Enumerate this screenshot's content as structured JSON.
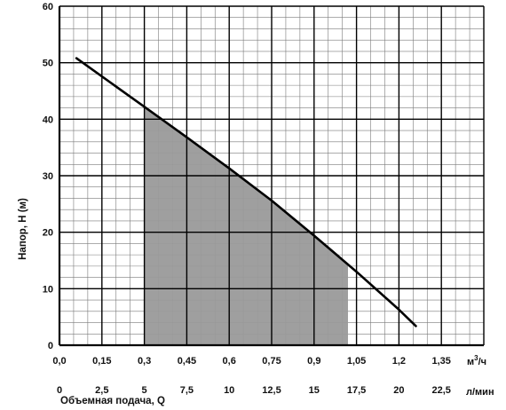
{
  "chart_data": {
    "type": "line",
    "ylabel": "Напор, H (м)",
    "xlabel": "Объемная подача, Q",
    "x_unit_top": "м³/ч",
    "x_unit_top_base": "м",
    "x_unit_top_sup": "3",
    "x_unit_top_suffix": "/ч",
    "x_unit_bottom": "л/мин",
    "xlim": [
      0,
      1.5
    ],
    "ylim": [
      0,
      60
    ],
    "grid": true,
    "x_ticks_top": [
      {
        "value": 0,
        "label": "0,0"
      },
      {
        "value": 0.15,
        "label": "0,15"
      },
      {
        "value": 0.3,
        "label": "0,3"
      },
      {
        "value": 0.45,
        "label": "0,45"
      },
      {
        "value": 0.6,
        "label": "0,6"
      },
      {
        "value": 0.75,
        "label": "0,75"
      },
      {
        "value": 0.9,
        "label": "0,9"
      },
      {
        "value": 1.05,
        "label": "1,05"
      },
      {
        "value": 1.2,
        "label": "1,2"
      },
      {
        "value": 1.35,
        "label": "1,35"
      }
    ],
    "x_ticks_bottom": [
      {
        "value": 0,
        "label": "0"
      },
      {
        "value": 2.5,
        "label": "2,5"
      },
      {
        "value": 5,
        "label": "5"
      },
      {
        "value": 7.5,
        "label": "7,5"
      },
      {
        "value": 10,
        "label": "10"
      },
      {
        "value": 12.5,
        "label": "12,5"
      },
      {
        "value": 15,
        "label": "15"
      },
      {
        "value": 17.5,
        "label": "17,5"
      },
      {
        "value": 20,
        "label": "20"
      },
      {
        "value": 22.5,
        "label": "22,5"
      }
    ],
    "y_ticks": [
      {
        "value": 0,
        "label": "0"
      },
      {
        "value": 10,
        "label": "10"
      },
      {
        "value": 20,
        "label": "20"
      },
      {
        "value": 30,
        "label": "30"
      },
      {
        "value": 40,
        "label": "40"
      },
      {
        "value": 50,
        "label": "50"
      },
      {
        "value": 60,
        "label": "60"
      }
    ],
    "series": [
      {
        "x": [
          0.06,
          0.3,
          0.45,
          0.6,
          0.75,
          0.9,
          1.05,
          1.2,
          1.26
        ],
        "y": [
          50.8,
          42.2,
          36.8,
          31.3,
          25.6,
          19.4,
          13.0,
          6.3,
          3.4
        ],
        "color": "#000000"
      }
    ],
    "shaded_region": {
      "x_range": [
        0.3,
        1.02
      ],
      "color": "#9a9a9a"
    }
  }
}
